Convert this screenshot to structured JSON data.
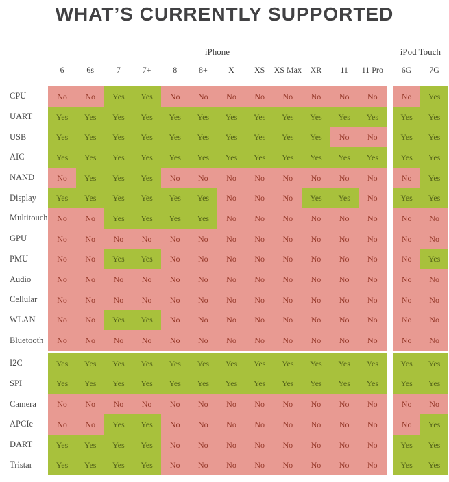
{
  "colors": {
    "yes_bg": "#a8c13c",
    "no_bg": "#e89a92",
    "yes_text": "#55641a",
    "no_text": "#96392a",
    "title_text": "#414143",
    "header_text": "#3f3f3f",
    "row_label_text": "#4a4a4a"
  },
  "chart_data": {
    "type": "table",
    "title": "WHAT’S CURRENTLY SUPPORTED",
    "column_groups": [
      {
        "label": "iPhone",
        "span": 12
      },
      {
        "label": "iPod Touch",
        "span": 2
      }
    ],
    "columns": [
      "6",
      "6s",
      "7",
      "7+",
      "8",
      "8+",
      "X",
      "XS",
      "XS Max",
      "XR",
      "11",
      "11 Pro",
      "6G",
      "7G"
    ],
    "sections": [
      {
        "rows": [
          {
            "label": "CPU",
            "values": [
              "No",
              "No",
              "Yes",
              "Yes",
              "No",
              "No",
              "No",
              "No",
              "No",
              "No",
              "No",
              "No",
              "No",
              "Yes"
            ]
          },
          {
            "label": "UART",
            "values": [
              "Yes",
              "Yes",
              "Yes",
              "Yes",
              "Yes",
              "Yes",
              "Yes",
              "Yes",
              "Yes",
              "Yes",
              "Yes",
              "Yes",
              "Yes",
              "Yes"
            ]
          },
          {
            "label": "USB",
            "values": [
              "Yes",
              "Yes",
              "Yes",
              "Yes",
              "Yes",
              "Yes",
              "Yes",
              "Yes",
              "Yes",
              "Yes",
              "No",
              "No",
              "Yes",
              "Yes"
            ]
          },
          {
            "label": "AIC",
            "values": [
              "Yes",
              "Yes",
              "Yes",
              "Yes",
              "Yes",
              "Yes",
              "Yes",
              "Yes",
              "Yes",
              "Yes",
              "Yes",
              "Yes",
              "Yes",
              "Yes"
            ]
          },
          {
            "label": "NAND",
            "values": [
              "No",
              "Yes",
              "Yes",
              "Yes",
              "No",
              "No",
              "No",
              "No",
              "No",
              "No",
              "No",
              "No",
              "No",
              "Yes"
            ]
          },
          {
            "label": "Display",
            "values": [
              "Yes",
              "Yes",
              "Yes",
              "Yes",
              "Yes",
              "Yes",
              "No",
              "No",
              "No",
              "Yes",
              "Yes",
              "No",
              "Yes",
              "Yes"
            ]
          },
          {
            "label": "Multitouch",
            "values": [
              "No",
              "No",
              "Yes",
              "Yes",
              "Yes",
              "Yes",
              "No",
              "No",
              "No",
              "No",
              "No",
              "No",
              "No",
              "No"
            ]
          },
          {
            "label": "GPU",
            "values": [
              "No",
              "No",
              "No",
              "No",
              "No",
              "No",
              "No",
              "No",
              "No",
              "No",
              "No",
              "No",
              "No",
              "No"
            ]
          },
          {
            "label": "PMU",
            "values": [
              "No",
              "No",
              "Yes",
              "Yes",
              "No",
              "No",
              "No",
              "No",
              "No",
              "No",
              "No",
              "No",
              "No",
              "Yes"
            ]
          },
          {
            "label": "Audio",
            "values": [
              "No",
              "No",
              "No",
              "No",
              "No",
              "No",
              "No",
              "No",
              "No",
              "No",
              "No",
              "No",
              "No",
              "No"
            ]
          },
          {
            "label": "Cellular",
            "values": [
              "No",
              "No",
              "No",
              "No",
              "No",
              "No",
              "No",
              "No",
              "No",
              "No",
              "No",
              "No",
              "No",
              "No"
            ]
          },
          {
            "label": "WLAN",
            "values": [
              "No",
              "No",
              "Yes",
              "Yes",
              "No",
              "No",
              "No",
              "No",
              "No",
              "No",
              "No",
              "No",
              "No",
              "No"
            ]
          },
          {
            "label": "Bluetooth",
            "values": [
              "No",
              "No",
              "No",
              "No",
              "No",
              "No",
              "No",
              "No",
              "No",
              "No",
              "No",
              "No",
              "No",
              "No"
            ]
          }
        ]
      },
      {
        "rows": [
          {
            "label": "I2C",
            "values": [
              "Yes",
              "Yes",
              "Yes",
              "Yes",
              "Yes",
              "Yes",
              "Yes",
              "Yes",
              "Yes",
              "Yes",
              "Yes",
              "Yes",
              "Yes",
              "Yes"
            ]
          },
          {
            "label": "SPI",
            "values": [
              "Yes",
              "Yes",
              "Yes",
              "Yes",
              "Yes",
              "Yes",
              "Yes",
              "Yes",
              "Yes",
              "Yes",
              "Yes",
              "Yes",
              "Yes",
              "Yes"
            ]
          },
          {
            "label": "Camera",
            "values": [
              "No",
              "No",
              "No",
              "No",
              "No",
              "No",
              "No",
              "No",
              "No",
              "No",
              "No",
              "No",
              "No",
              "No"
            ]
          },
          {
            "label": "APCIe",
            "values": [
              "No",
              "No",
              "Yes",
              "Yes",
              "No",
              "No",
              "No",
              "No",
              "No",
              "No",
              "No",
              "No",
              "No",
              "Yes"
            ]
          },
          {
            "label": "DART",
            "values": [
              "Yes",
              "Yes",
              "Yes",
              "Yes",
              "No",
              "No",
              "No",
              "No",
              "No",
              "No",
              "No",
              "No",
              "Yes",
              "Yes"
            ]
          },
          {
            "label": "Tristar",
            "values": [
              "Yes",
              "Yes",
              "Yes",
              "Yes",
              "No",
              "No",
              "No",
              "No",
              "No",
              "No",
              "No",
              "No",
              "Yes",
              "Yes"
            ]
          }
        ]
      }
    ]
  }
}
